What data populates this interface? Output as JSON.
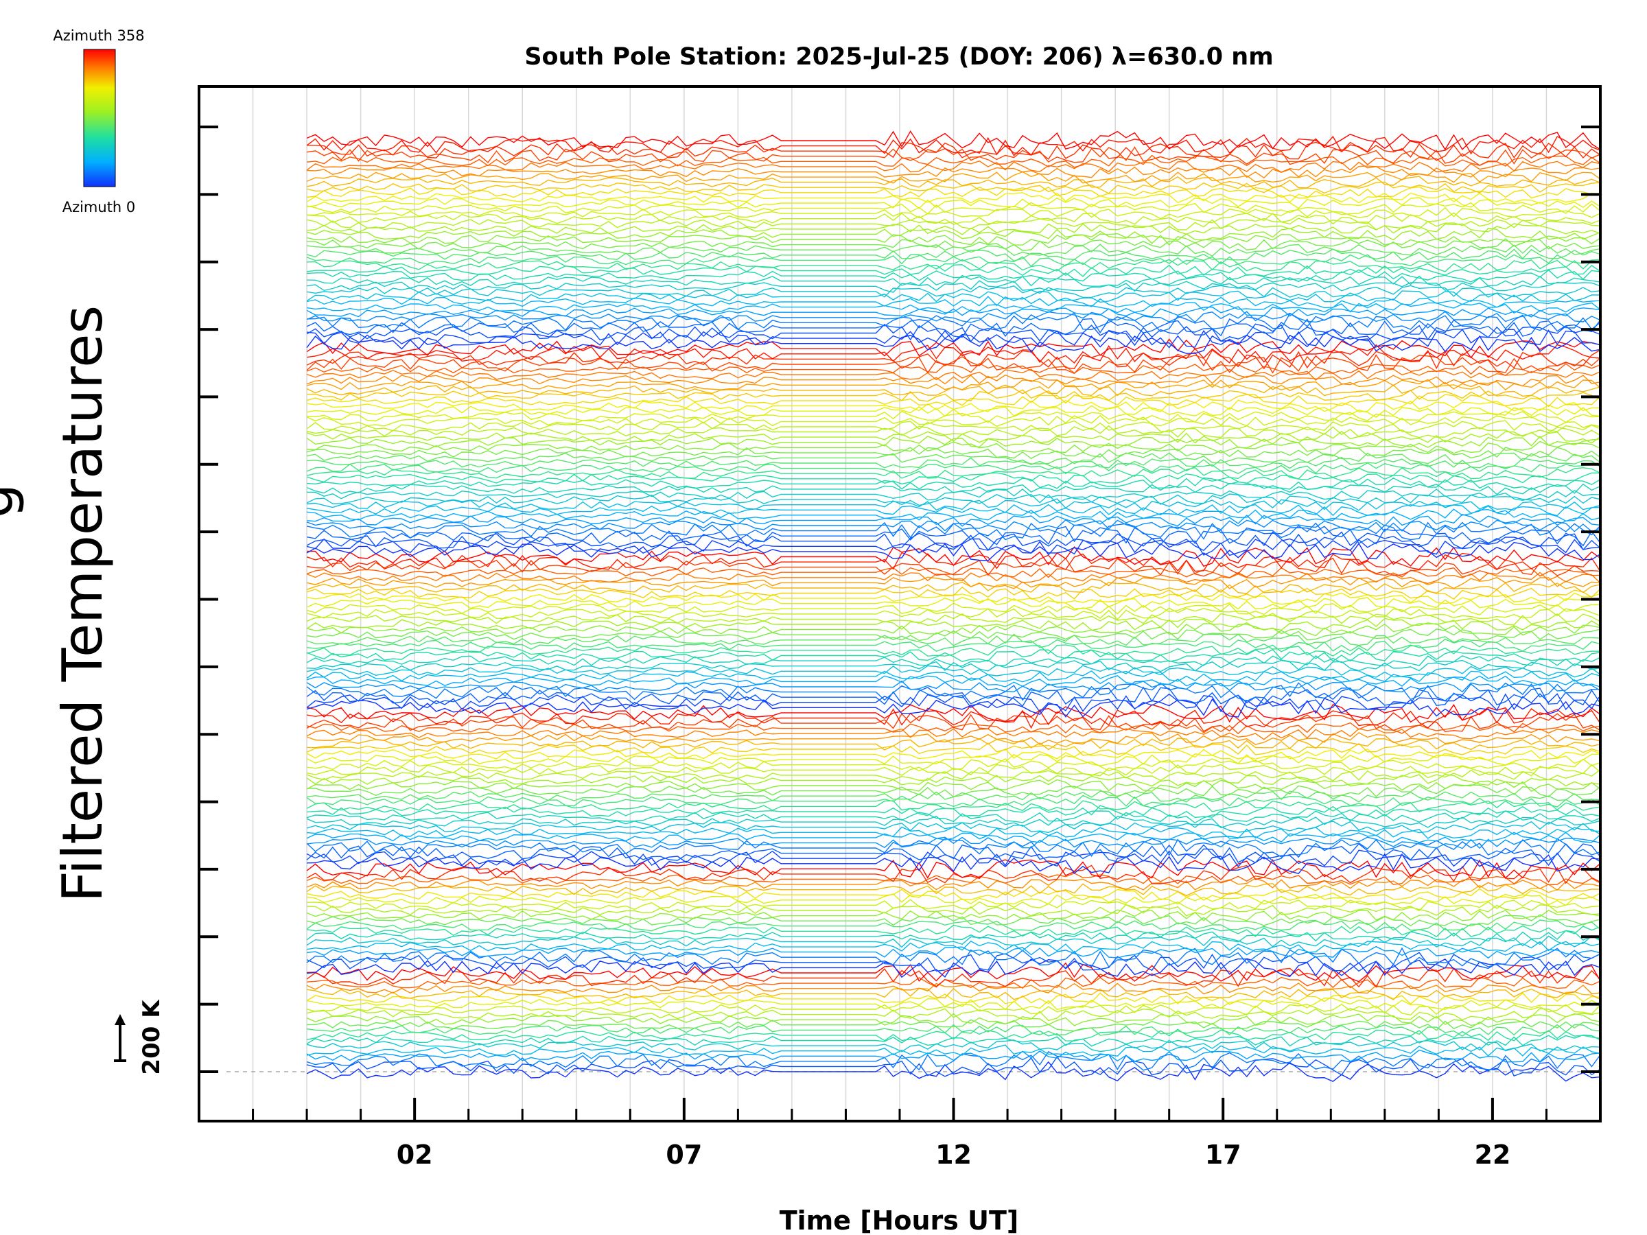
{
  "chart_data": {
    "type": "line",
    "title": "South Pole Station: 2025-Jul-25 (DOY: 206) λ=630.0 nm",
    "xlabel": "Time [Hours UT]",
    "ylabel": "Filtered Temperatures",
    "ylabel_partial": "g",
    "x_ticks": [
      "02",
      "07",
      "12",
      "17",
      "22"
    ],
    "x_tick_values": [
      2,
      7,
      12,
      17,
      22
    ],
    "xlim": [
      -2.0,
      24.0
    ],
    "data_x_range": [
      0.0,
      24.0
    ],
    "x_gap": [
      8.8,
      10.6
    ],
    "y_major_tick_count": 15,
    "scale_bar_label": "200 K",
    "colorbar": {
      "top_label": "Azimuth 358",
      "bottom_label": "Azimuth 0",
      "min": 0,
      "max": 358
    },
    "colors": {
      "low": "#1030ff",
      "high": "#ff0000",
      "grid": "#d8d8d8",
      "axis": "#000000"
    },
    "series_description_hidden": "traces",
    "bands": [
      {
        "lines": 20,
        "azimuth_start": 0,
        "azimuth_end": 358
      },
      {
        "lines": 20,
        "azimuth_start": 0,
        "azimuth_end": 358
      },
      {
        "lines": 30,
        "azimuth_start": 0,
        "azimuth_end": 358
      },
      {
        "lines": 30,
        "azimuth_start": 0,
        "azimuth_end": 358
      },
      {
        "lines": 40,
        "azimuth_start": 0,
        "azimuth_end": 358
      },
      {
        "lines": 40,
        "azimuth_start": 0,
        "azimuth_end": 358
      }
    ]
  }
}
